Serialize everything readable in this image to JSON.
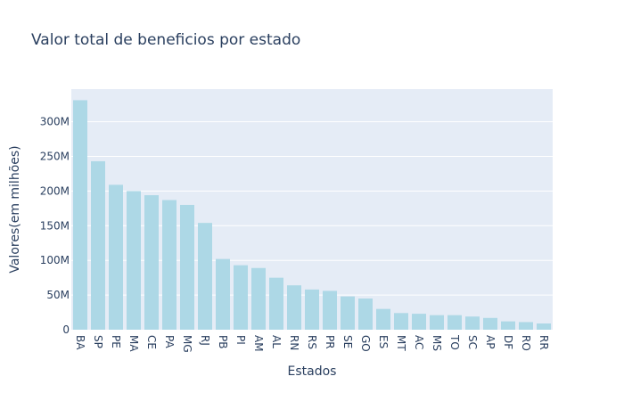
{
  "chart_data": {
    "type": "bar",
    "title": "Valor total de beneficios por estado",
    "xlabel": "Estados",
    "ylabel": "Valores(em milhões)",
    "categories": [
      "BA",
      "SP",
      "PE",
      "MA",
      "CE",
      "PA",
      "MG",
      "RJ",
      "PB",
      "PI",
      "AM",
      "AL",
      "RN",
      "RS",
      "PR",
      "SE",
      "GO",
      "ES",
      "MT",
      "AC",
      "MS",
      "TO",
      "SC",
      "AP",
      "DF",
      "RO",
      "RR"
    ],
    "values": [
      331,
      243,
      209,
      200,
      194,
      187,
      180,
      154,
      102,
      93,
      89,
      75,
      64,
      58,
      56,
      48,
      45,
      30,
      24,
      23,
      21,
      21,
      19,
      17,
      12,
      11,
      9
    ],
    "ylim": [
      0,
      347
    ],
    "yticks": [
      0,
      50,
      100,
      150,
      200,
      250,
      300
    ],
    "ytick_labels": [
      "0",
      "50M",
      "100M",
      "150M",
      "200M",
      "250M",
      "300M"
    ],
    "bar_color": "#add8e6",
    "plot_bg": "#e5ecf6",
    "grid": true
  }
}
